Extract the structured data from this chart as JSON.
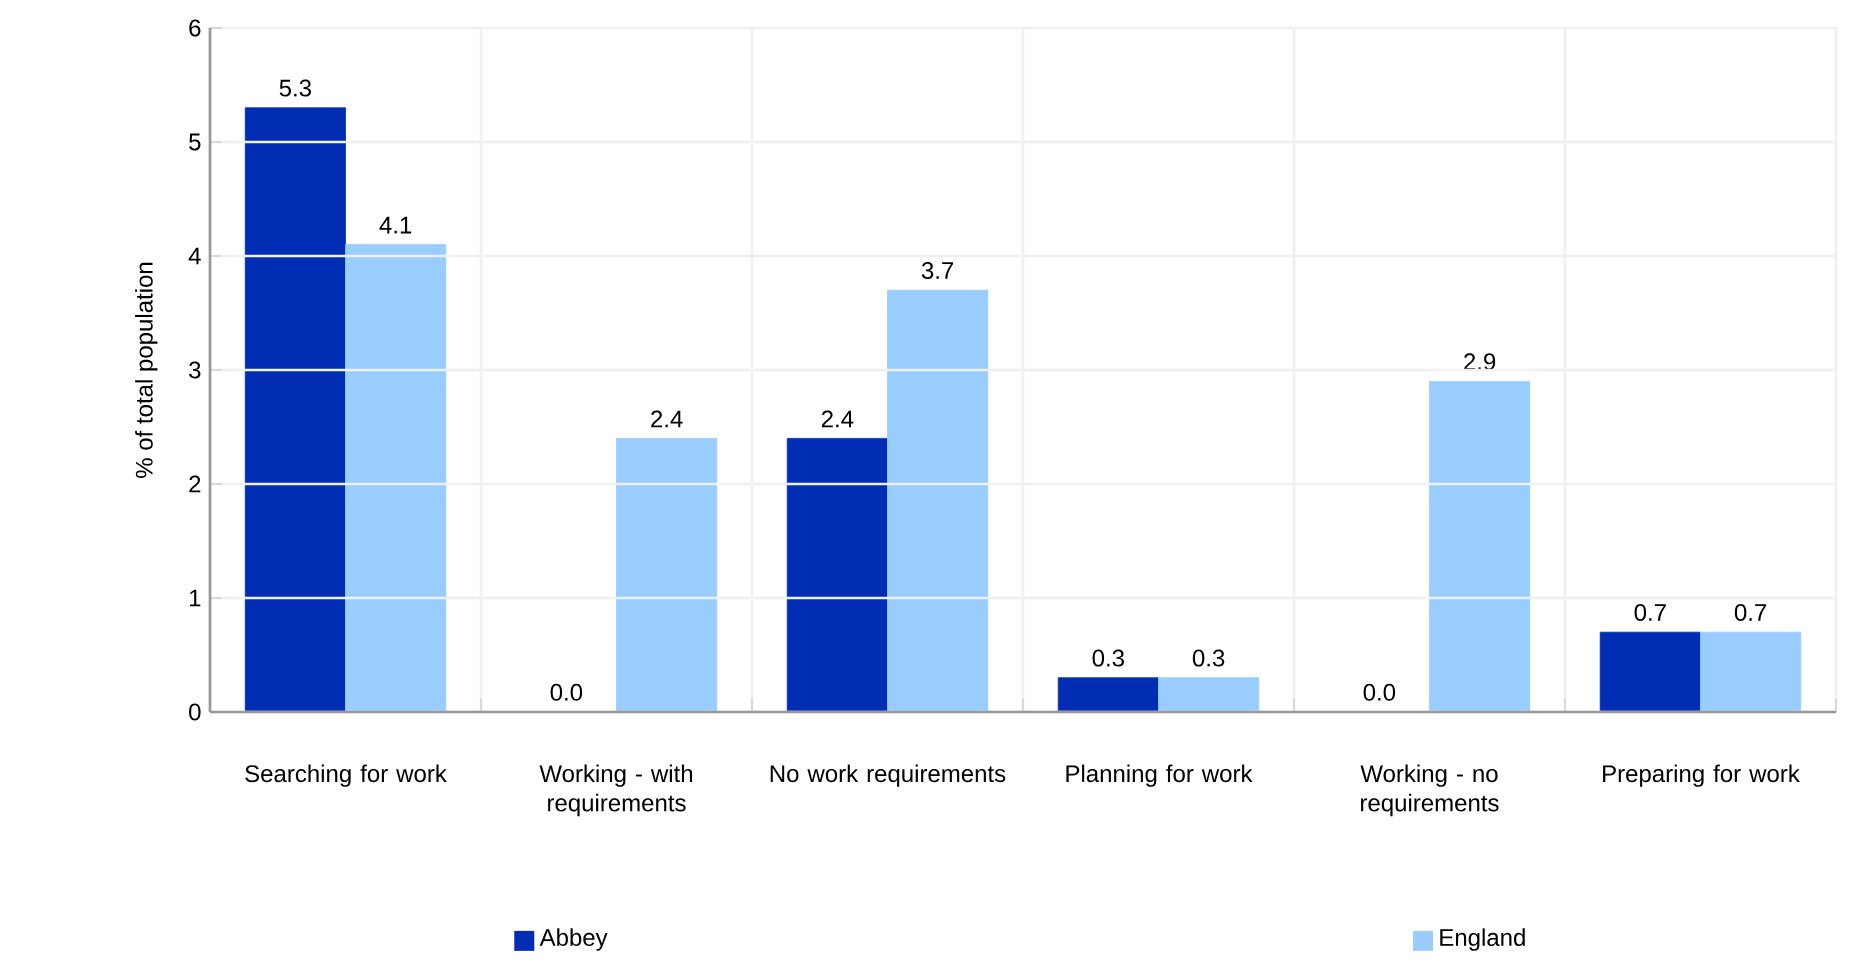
{
  "chart_data": {
    "type": "bar",
    "ylabel": "% of total population",
    "categories": [
      "Searching for work",
      "Working - with requirements",
      "No work requirements",
      "Planning for work",
      "Working - no requirements",
      "Preparing for work"
    ],
    "series": [
      {
        "name": "Abbey",
        "color": "#002db3",
        "values": [
          5.3,
          0,
          2.4,
          0.3,
          0,
          0.7
        ],
        "value_labels": [
          "5.3",
          "0.0",
          "2.4",
          "0.3",
          "0.0",
          "0.7"
        ]
      },
      {
        "name": "England",
        "color": "#99ccff",
        "values": [
          4.1,
          2.4,
          3.7,
          0.3,
          2.9,
          0.7
        ],
        "value_labels": [
          "4.1",
          "2.4",
          "3.7",
          "0.3",
          "2.9",
          "0.7"
        ]
      }
    ],
    "ylim": [
      0,
      6
    ],
    "yticks": [
      0,
      1,
      2,
      3,
      4,
      5,
      6
    ],
    "grid": true,
    "legend": "bottom"
  }
}
